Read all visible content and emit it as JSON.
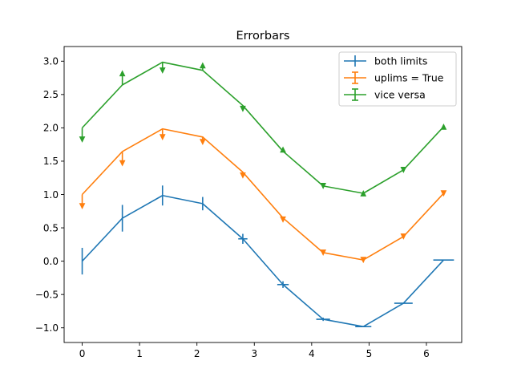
{
  "chart_data": {
    "type": "line",
    "title": "Errorbars",
    "xlabel": "",
    "ylabel": "",
    "xlim": [
      -0.315,
      6.615
    ],
    "ylim": [
      -1.22,
      3.22
    ],
    "xticks": [
      0,
      1,
      2,
      3,
      4,
      5,
      6
    ],
    "yticks": [
      -1.0,
      -0.5,
      0.0,
      0.5,
      1.0,
      1.5,
      2.0,
      2.5,
      3.0
    ],
    "xtick_labels": [
      "0",
      "1",
      "2",
      "3",
      "4",
      "5",
      "6"
    ],
    "ytick_labels": [
      "−1.0",
      "−0.5",
      "0.0",
      "0.5",
      "1.0",
      "1.5",
      "2.0",
      "2.5",
      "3.0"
    ],
    "x": [
      0.0,
      0.7,
      1.4,
      2.1,
      2.8,
      3.5,
      4.2,
      4.9,
      5.6,
      6.3
    ],
    "grid": false,
    "legend_position": "upper right",
    "series": [
      {
        "name": "both limits",
        "color": "#1f77b4",
        "offset": 0,
        "values": [
          0.0,
          0.644,
          0.985,
          0.863,
          0.335,
          -0.351,
          -0.872,
          -0.982,
          -0.631,
          0.017
        ],
        "xerr": [
          0.0,
          0.0,
          0.0,
          0.0,
          0.0,
          0.0,
          0.0,
          0.0,
          0.0,
          0.0
        ],
        "yerr": [
          0.2,
          0.2,
          0.15,
          0.1,
          0.075,
          0.05,
          0.025,
          0.0,
          0.0,
          0.0
        ],
        "xerr_mark": [
          0.0,
          0.0,
          0.0,
          0.0,
          0.08,
          0.1,
          0.12,
          0.14,
          0.16,
          0.18
        ],
        "lolims": false,
        "uplims": false,
        "legend_marker": "both"
      },
      {
        "name": "uplims = True",
        "color": "#ff7f0e",
        "offset": 1,
        "values": [
          1.0,
          1.644,
          1.985,
          1.863,
          1.335,
          0.649,
          0.128,
          0.018,
          0.369,
          1.017
        ],
        "yerr": [
          0.2,
          0.2,
          0.15,
          0.1,
          0.075,
          0.05,
          0.025,
          0.025,
          0.025,
          0.025
        ],
        "limit": "uplims",
        "legend_marker": "cap"
      },
      {
        "name": "vice versa",
        "color": "#2ca02c",
        "offset": 2,
        "values": [
          2.0,
          2.644,
          2.985,
          2.863,
          2.335,
          1.649,
          1.128,
          1.018,
          1.369,
          2.017
        ],
        "yerr": [
          0.2,
          0.2,
          0.15,
          0.1,
          0.075,
          0.05,
          0.025,
          0.025,
          0.025,
          0.025
        ],
        "limit_pattern": [
          "up",
          "low",
          "up",
          "low",
          "up",
          "low",
          "up",
          "low",
          "up",
          "low"
        ],
        "legend_marker": "cap"
      }
    ]
  }
}
